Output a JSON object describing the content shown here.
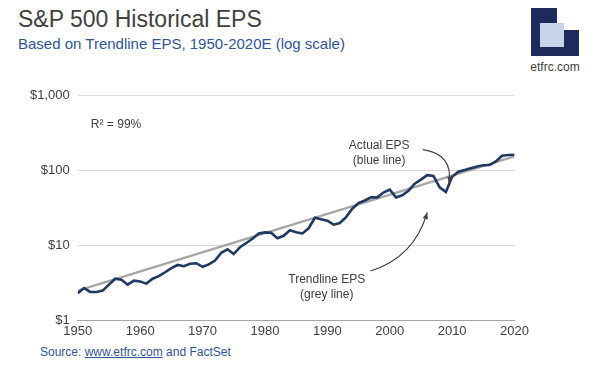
{
  "chart_data": {
    "type": "line",
    "title": "S&P 500 Historical EPS",
    "subtitle": "Based on Trendline EPS, 1950-2020E (log scale)",
    "source": "Source: www.etfrc.com and FactSet",
    "logo": "etfrc.com",
    "annotations": [
      "R² = 99%",
      "Actual EPS\n(blue line)",
      "Trendline EPS\n(grey line)"
    ],
    "log": "y",
    "grid": "y",
    "xlim": [
      1950,
      2020
    ],
    "xticks": [
      1950,
      1960,
      1970,
      1980,
      1990,
      2000,
      2010,
      2020
    ],
    "ylim": [
      1,
      1000
    ],
    "yticks": [
      {
        "value": 1,
        "label": "$1"
      },
      {
        "value": 10,
        "label": "$10"
      },
      {
        "value": 100,
        "label": "$100"
      },
      {
        "value": 1000,
        "label": "$1,000"
      }
    ],
    "series": [
      {
        "name": "Actual EPS",
        "color": "#1f3864",
        "x": [
          1950,
          1951,
          1952,
          1953,
          1954,
          1955,
          1956,
          1957,
          1958,
          1959,
          1960,
          1961,
          1962,
          1963,
          1964,
          1965,
          1966,
          1967,
          1968,
          1969,
          1970,
          1971,
          1972,
          1973,
          1974,
          1975,
          1976,
          1977,
          1978,
          1979,
          1980,
          1981,
          1982,
          1983,
          1984,
          1985,
          1986,
          1987,
          1988,
          1989,
          1990,
          1991,
          1992,
          1993,
          1994,
          1995,
          1996,
          1997,
          1998,
          1999,
          2000,
          2001,
          2002,
          2003,
          2004,
          2005,
          2006,
          2007,
          2008,
          2009,
          2010,
          2011,
          2012,
          2013,
          2014,
          2015,
          2016,
          2017,
          2018,
          2019,
          2020
        ],
        "values": [
          2.3,
          2.7,
          2.4,
          2.4,
          2.5,
          3.0,
          3.6,
          3.5,
          3.0,
          3.4,
          3.3,
          3.1,
          3.6,
          3.9,
          4.4,
          5.0,
          5.5,
          5.3,
          5.7,
          5.8,
          5.2,
          5.6,
          6.3,
          8.0,
          8.9,
          7.7,
          9.5,
          10.8,
          12.3,
          14.5,
          15,
          14.8,
          12.5,
          13.5,
          16,
          15,
          14.5,
          17,
          23.5,
          22.5,
          21.5,
          19,
          20,
          24,
          31,
          37,
          40,
          44,
          44,
          51,
          56,
          44,
          47,
          54,
          67,
          76,
          87,
          85,
          60,
          52,
          83,
          97,
          102,
          108,
          114,
          118,
          119,
          133,
          158,
          162,
          163
        ]
      },
      {
        "name": "Trendline EPS",
        "color": "#a6a6a6",
        "x": [
          1950,
          2020
        ],
        "values": [
          2.5,
          155
        ]
      }
    ]
  }
}
